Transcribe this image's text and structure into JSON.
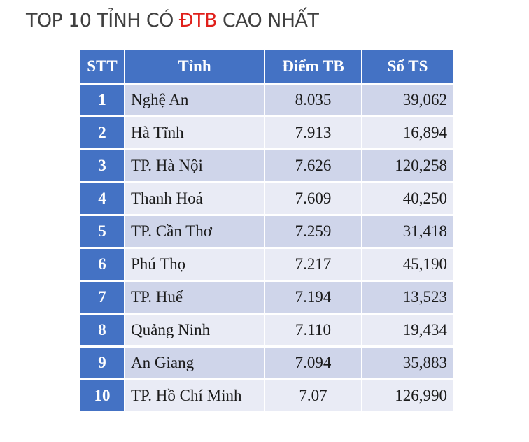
{
  "title": {
    "prefix": "TOP 10 TỈNH CÓ ",
    "highlight": "ĐTB",
    "suffix": " CAO NHẤT",
    "highlight_color": "#e0201b"
  },
  "table": {
    "headers": [
      "STT",
      "Tỉnh",
      "Điểm TB",
      "Số TS"
    ],
    "rows": [
      {
        "stt": "1",
        "tinh": "Nghệ An",
        "diem_tb": "8.035",
        "so_ts": "39,062"
      },
      {
        "stt": "2",
        "tinh": "Hà Tĩnh",
        "diem_tb": "7.913",
        "so_ts": "16,894"
      },
      {
        "stt": "3",
        "tinh": "TP. Hà Nội",
        "diem_tb": "7.626",
        "so_ts": "120,258"
      },
      {
        "stt": "4",
        "tinh": "Thanh Hoá",
        "diem_tb": "7.609",
        "so_ts": "40,250"
      },
      {
        "stt": "5",
        "tinh": "TP. Cần Thơ",
        "diem_tb": "7.259",
        "so_ts": "31,418"
      },
      {
        "stt": "6",
        "tinh": "Phú Thọ",
        "diem_tb": "7.217",
        "so_ts": "45,190"
      },
      {
        "stt": "7",
        "tinh": "TP. Huế",
        "diem_tb": "7.194",
        "so_ts": "13,523"
      },
      {
        "stt": "8",
        "tinh": "Quảng Ninh",
        "diem_tb": "7.110",
        "so_ts": "19,434"
      },
      {
        "stt": "9",
        "tinh": "An Giang",
        "diem_tb": "7.094",
        "so_ts": "35,883"
      },
      {
        "stt": "10",
        "tinh": "TP. Hồ Chí Minh",
        "diem_tb": "7.07",
        "so_ts": "126,990"
      }
    ]
  },
  "colors": {
    "header_bg": "#4472c4",
    "row_odd_bg": "#cfd5ea",
    "row_even_bg": "#e9ebf5",
    "title_text": "#404040"
  }
}
